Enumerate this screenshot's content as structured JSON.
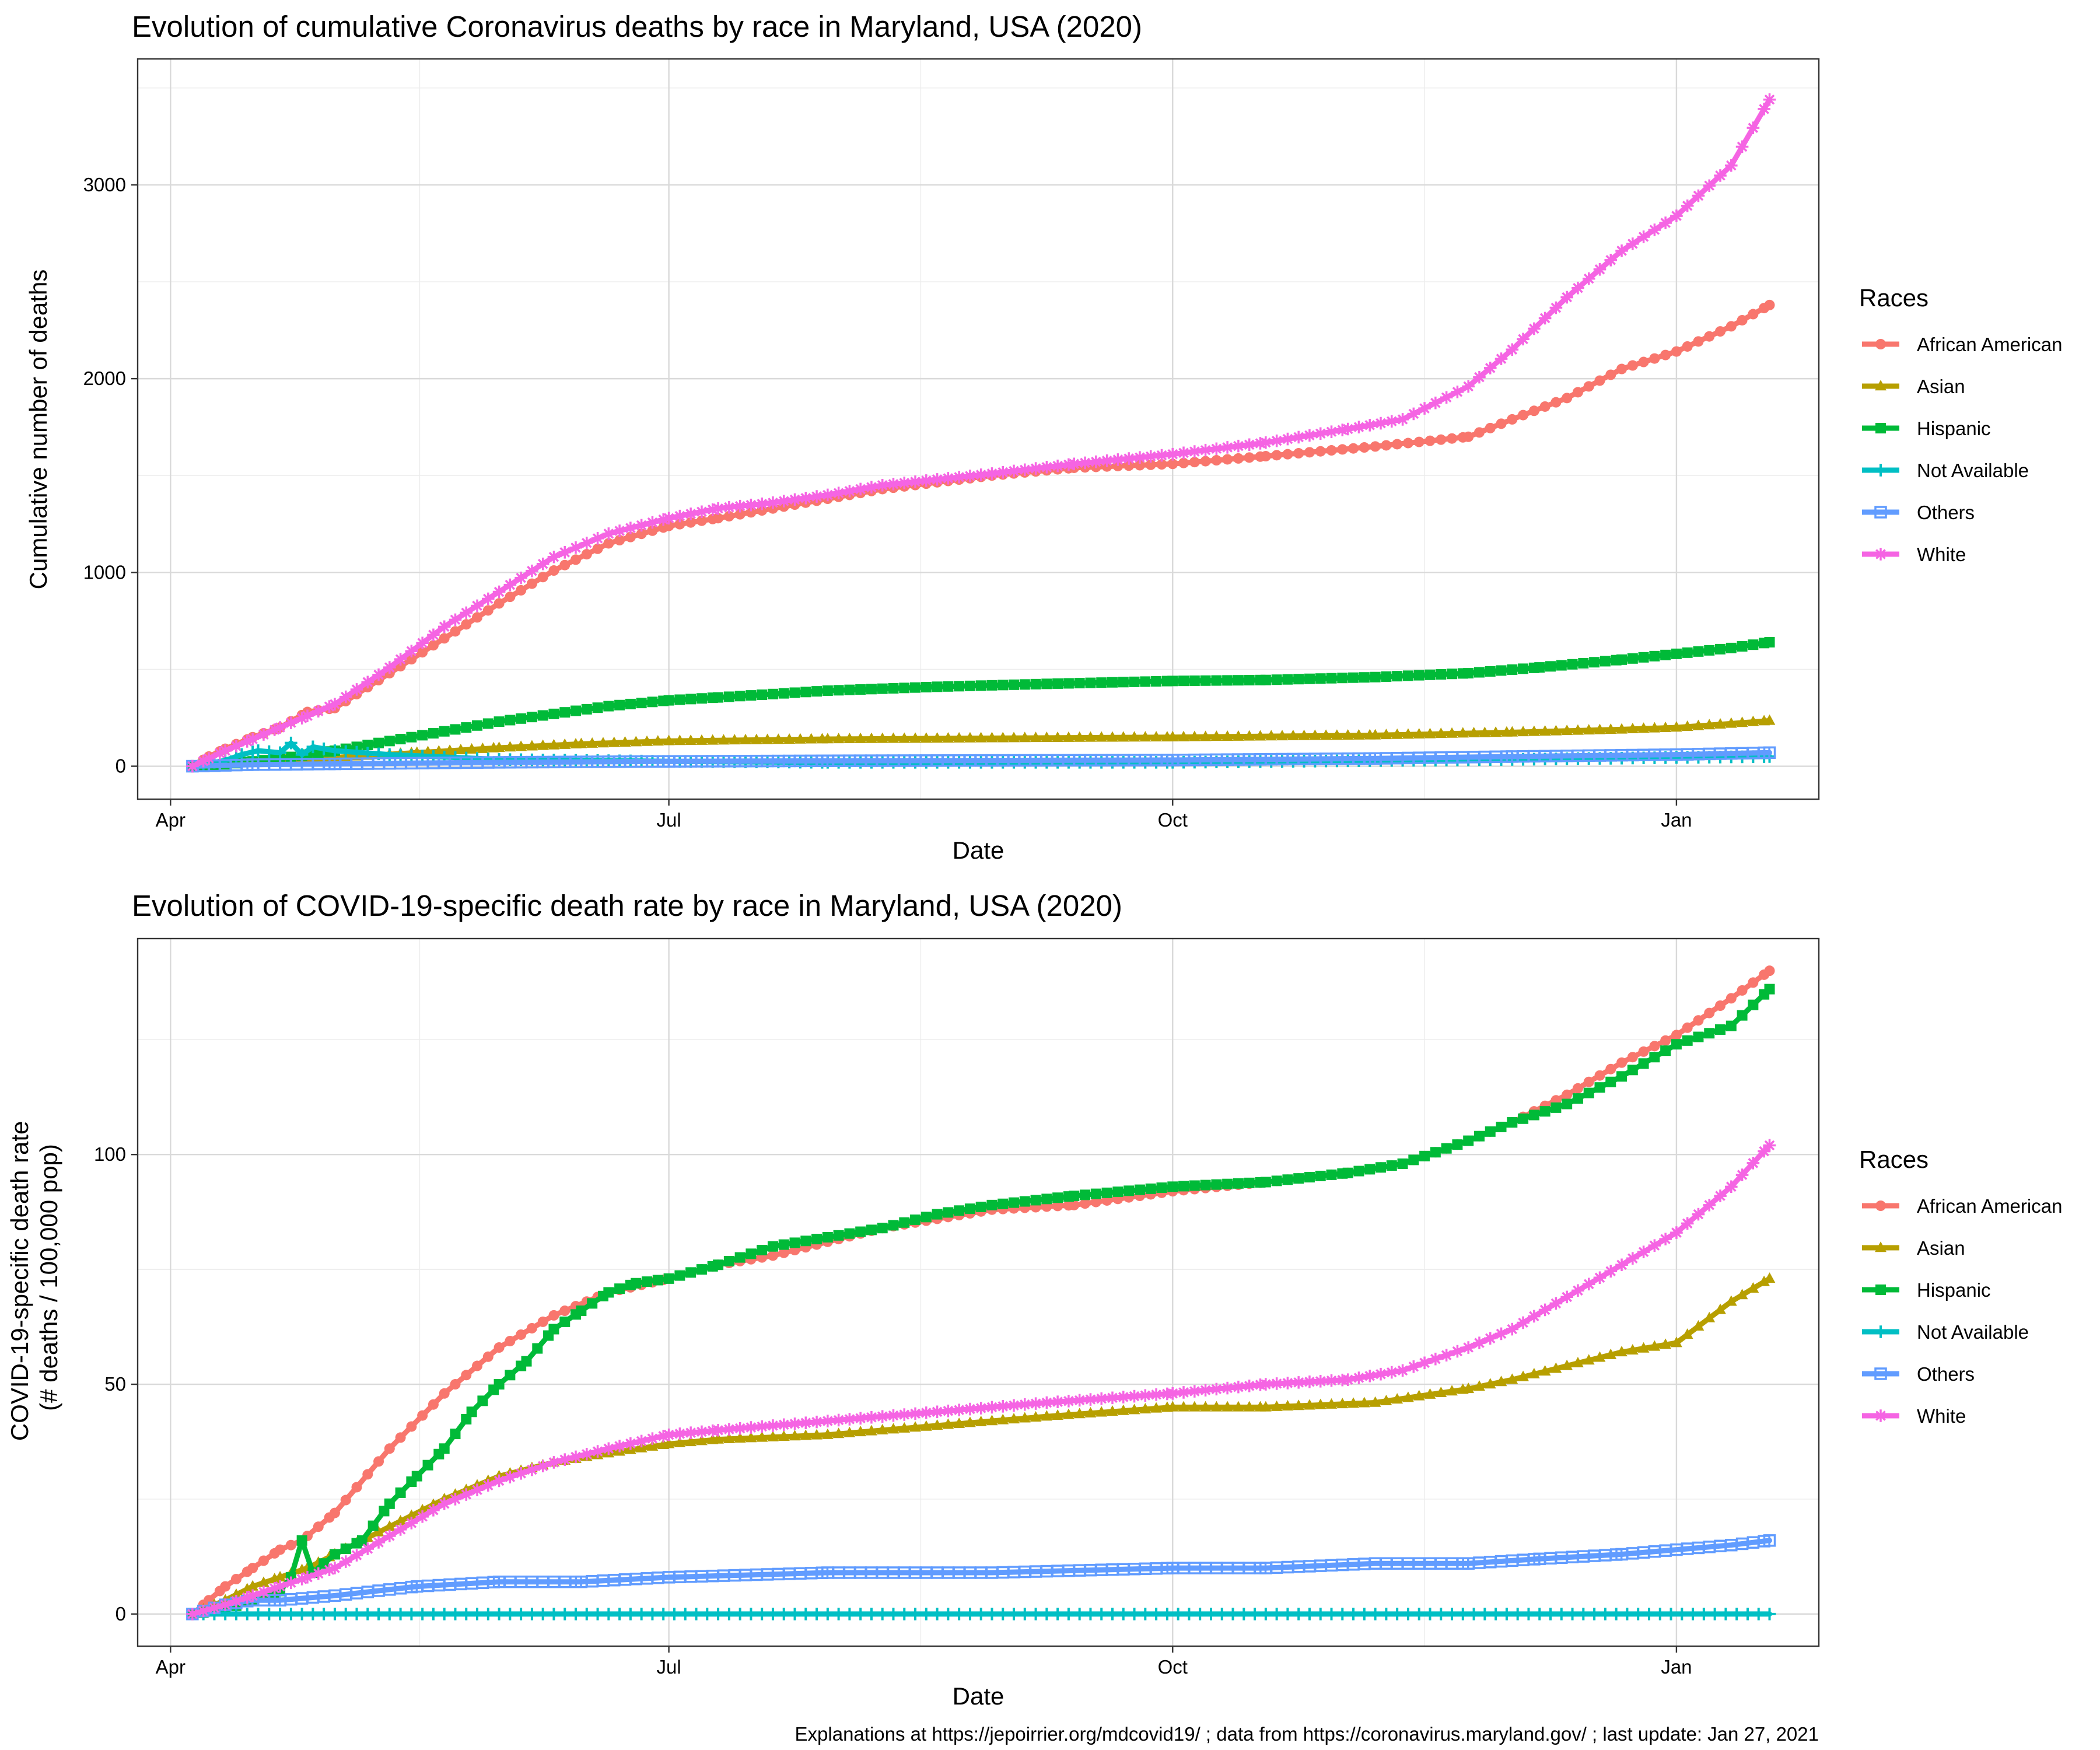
{
  "caption": "Explanations at https://jepoirrier.org/mdcovid19/ ; data from https://coronavirus.maryland.gov/ ; last update: Jan 27, 2021",
  "colors": {
    "African American": "#F8766D",
    "Asian": "#B79F00",
    "Hispanic": "#00BA38",
    "Not Available": "#00BFC4",
    "Others": "#619CFF",
    "White": "#F564E3"
  },
  "chart_data": [
    {
      "type": "line",
      "title": "Evolution of cumulative Coronavirus deaths by race in Maryland, USA (2020)",
      "xlabel": "Date",
      "ylabel": "Cumulative number of deaths",
      "legend_title": "Races",
      "legend_position": "right",
      "grid": true,
      "x_domain_days": [
        -6,
        301
      ],
      "ylim": [
        -170,
        3650
      ],
      "x_ticks": [
        {
          "label": "Apr",
          "day": 0
        },
        {
          "label": "Jul",
          "day": 91
        },
        {
          "label": "Oct",
          "day": 183
        },
        {
          "label": "Jan",
          "day": 275
        }
      ],
      "y_ticks": [
        {
          "label": "0",
          "value": 0
        },
        {
          "label": "1000",
          "value": 1000
        },
        {
          "label": "2000",
          "value": 2000
        },
        {
          "label": "3000",
          "value": 3000
        }
      ],
      "x_unit": "days since Apr 1, 2020",
      "series": [
        {
          "name": "African American",
          "marker": "circle",
          "x": [
            4,
            7,
            10,
            15,
            20,
            25,
            30,
            40,
            50,
            60,
            70,
            80,
            91,
            100,
            110,
            120,
            130,
            150,
            165,
            183,
            200,
            220,
            237,
            245,
            255,
            265,
            275,
            285,
            292
          ],
          "y": [
            0,
            50,
            90,
            150,
            200,
            280,
            300,
            480,
            660,
            840,
            1010,
            1150,
            1240,
            1280,
            1330,
            1380,
            1430,
            1500,
            1540,
            1560,
            1600,
            1650,
            1700,
            1790,
            1900,
            2050,
            2140,
            2270,
            2380
          ]
        },
        {
          "name": "Asian",
          "marker": "triangle",
          "x": [
            4,
            15,
            30,
            45,
            60,
            75,
            91,
            120,
            150,
            183,
            220,
            245,
            265,
            275,
            285,
            292
          ],
          "y": [
            0,
            20,
            45,
            70,
            95,
            115,
            130,
            140,
            145,
            150,
            160,
            175,
            190,
            200,
            220,
            235
          ]
        },
        {
          "name": "Hispanic",
          "marker": "square",
          "x": [
            4,
            10,
            15,
            20,
            25,
            30,
            40,
            50,
            60,
            70,
            80,
            91,
            100,
            120,
            140,
            160,
            183,
            200,
            220,
            237,
            250,
            265,
            275,
            285,
            292
          ],
          "y": [
            0,
            10,
            25,
            40,
            60,
            80,
            130,
            180,
            230,
            270,
            310,
            340,
            355,
            390,
            410,
            425,
            440,
            445,
            460,
            480,
            510,
            550,
            580,
            610,
            640
          ]
        },
        {
          "name": "Not Available",
          "marker": "plus",
          "x": [
            4,
            10,
            13,
            16,
            20,
            22,
            24,
            26,
            30,
            40,
            60,
            91,
            120,
            183,
            245,
            275,
            292
          ],
          "y": [
            0,
            30,
            60,
            80,
            70,
            120,
            60,
            100,
            80,
            60,
            35,
            25,
            20,
            20,
            35,
            45,
            50
          ]
        },
        {
          "name": "Others",
          "marker": "square-open",
          "x": [
            4,
            15,
            30,
            60,
            91,
            120,
            150,
            183,
            220,
            245,
            275,
            292
          ],
          "y": [
            0,
            8,
            12,
            20,
            25,
            28,
            30,
            32,
            40,
            50,
            60,
            70
          ]
        },
        {
          "name": "White",
          "marker": "star",
          "x": [
            4,
            7,
            10,
            15,
            20,
            25,
            30,
            40,
            50,
            60,
            70,
            80,
            91,
            100,
            110,
            120,
            130,
            150,
            165,
            183,
            200,
            215,
            225,
            237,
            245,
            255,
            265,
            275,
            285,
            292
          ],
          "y": [
            0,
            40,
            80,
            140,
            200,
            260,
            320,
            510,
            720,
            900,
            1080,
            1200,
            1280,
            1330,
            1360,
            1400,
            1450,
            1510,
            1560,
            1610,
            1670,
            1740,
            1790,
            1960,
            2150,
            2420,
            2660,
            2840,
            3100,
            3440
          ]
        }
      ]
    },
    {
      "type": "line",
      "title": "Evolution of COVID-19-specific death rate by race in Maryland, USA (2020)",
      "xlabel": "Date",
      "ylabel": "COVID-19-specific death rate\n(# deaths / 100,000 pop)",
      "legend_title": "Races",
      "legend_position": "right",
      "grid": true,
      "x_domain_days": [
        -6,
        301
      ],
      "ylim": [
        -7,
        147
      ],
      "x_ticks": [
        {
          "label": "Apr",
          "day": 0
        },
        {
          "label": "Jul",
          "day": 91
        },
        {
          "label": "Oct",
          "day": 183
        },
        {
          "label": "Jan",
          "day": 275
        }
      ],
      "y_ticks": [
        {
          "label": "0",
          "value": 0
        },
        {
          "label": "50",
          "value": 50
        },
        {
          "label": "100",
          "value": 100
        }
      ],
      "x_unit": "days since Apr 1, 2020",
      "series": [
        {
          "name": "African American",
          "marker": "circle",
          "x": [
            4,
            7,
            10,
            15,
            20,
            24,
            25,
            30,
            40,
            50,
            60,
            70,
            80,
            91,
            100,
            110,
            120,
            130,
            140,
            150,
            165,
            183,
            200,
            215,
            225,
            237,
            245,
            255,
            265,
            275,
            285,
            292
          ],
          "y": [
            0,
            3,
            6,
            10,
            14,
            16,
            17,
            22,
            36,
            48,
            58,
            65,
            70,
            73,
            76,
            78,
            81,
            84,
            86,
            88,
            89,
            92,
            94,
            96,
            98,
            103,
            107,
            113,
            120,
            126,
            134,
            140
          ]
        },
        {
          "name": "Asian",
          "marker": "triangle",
          "x": [
            4,
            10,
            15,
            20,
            25,
            30,
            40,
            50,
            60,
            70,
            80,
            91,
            100,
            120,
            140,
            160,
            183,
            200,
            220,
            237,
            245,
            255,
            265,
            275,
            285,
            292
          ],
          "y": [
            0,
            3,
            6,
            8,
            10,
            13,
            19,
            25,
            30,
            33,
            35,
            37,
            38,
            39,
            41,
            43,
            45,
            45,
            46,
            49,
            51,
            54,
            57,
            59,
            68,
            73
          ]
        },
        {
          "name": "Hispanic",
          "marker": "square",
          "x": [
            4,
            10,
            15,
            20,
            22,
            24,
            26,
            30,
            35,
            40,
            45,
            50,
            55,
            60,
            65,
            70,
            75,
            80,
            85,
            91,
            100,
            110,
            120,
            130,
            140,
            150,
            165,
            183,
            200,
            215,
            225,
            237,
            245,
            255,
            265,
            275,
            285,
            292
          ],
          "y": [
            0,
            1,
            3,
            5,
            8,
            16,
            9,
            13,
            16,
            24,
            30,
            36,
            44,
            50,
            55,
            62,
            66,
            70,
            72,
            73,
            76,
            80,
            82,
            84,
            87,
            89,
            91,
            93,
            94,
            96,
            98,
            103,
            107,
            111,
            117,
            124,
            128,
            136
          ]
        },
        {
          "name": "Not Available",
          "marker": "plus",
          "x": [
            4,
            100,
            200,
            292
          ],
          "y": [
            0,
            0,
            0,
            0
          ]
        },
        {
          "name": "Others",
          "marker": "square-open",
          "x": [
            4,
            10,
            15,
            20,
            30,
            45,
            60,
            75,
            91,
            120,
            150,
            183,
            200,
            220,
            237,
            250,
            265,
            275,
            285,
            292
          ],
          "y": [
            0,
            2,
            3,
            3,
            4,
            6,
            7,
            7,
            8,
            9,
            9,
            10,
            10,
            11,
            11,
            12,
            13,
            14,
            15,
            16
          ]
        },
        {
          "name": "White",
          "marker": "star",
          "x": [
            4,
            10,
            15,
            20,
            25,
            30,
            40,
            50,
            60,
            70,
            80,
            91,
            100,
            120,
            140,
            160,
            183,
            200,
            215,
            225,
            237,
            245,
            255,
            265,
            275,
            285,
            292
          ],
          "y": [
            0,
            2,
            4,
            6,
            8,
            10,
            17,
            24,
            29,
            33,
            36,
            39,
            40,
            42,
            44,
            46,
            48,
            50,
            51,
            53,
            58,
            62,
            69,
            76,
            83,
            93,
            102
          ]
        }
      ]
    }
  ]
}
